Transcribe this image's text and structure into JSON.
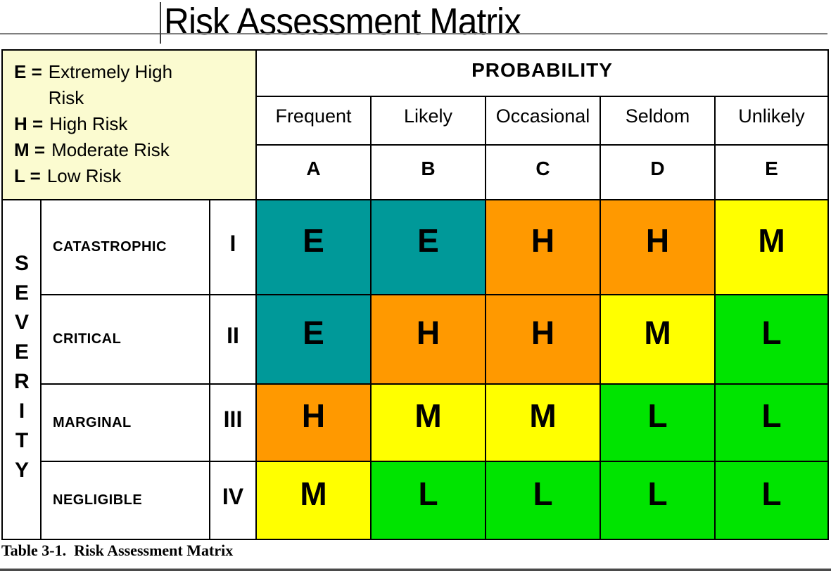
{
  "title": "Risk Assessment Matrix",
  "caption": "Table 3-1.  Risk Assessment Matrix",
  "legend": {
    "background": "#FBFBD0",
    "items": [
      {
        "key": "E =",
        "label": "Extremely High Risk"
      },
      {
        "key": "H =",
        "label": "High Risk"
      },
      {
        "key": "M =",
        "label": "Moderate Risk"
      },
      {
        "key": "L =",
        "label": "Low Risk"
      }
    ]
  },
  "probability": {
    "title": "PROBABILITY",
    "columns": [
      {
        "name": "Frequent",
        "letter": "A"
      },
      {
        "name": "Likely",
        "letter": "B"
      },
      {
        "name": "Occasional",
        "letter": "C"
      },
      {
        "name": "Seldom",
        "letter": "D"
      },
      {
        "name": "Unlikely",
        "letter": "E"
      }
    ]
  },
  "severity": {
    "label": "SEVERITY"
  },
  "risk_colors": {
    "E": "#009999",
    "H": "#FF9900",
    "M": "#FFFF00",
    "L": "#00E400"
  },
  "matrix": {
    "rows": [
      {
        "severity": "CATASTROPHIC",
        "numeral": "I",
        "cells": [
          {
            "label": "E",
            "color": "#009999"
          },
          {
            "label": "E",
            "color": "#009999"
          },
          {
            "label": "H",
            "color": "#FF9900"
          },
          {
            "label": "H",
            "color": "#FF9900"
          },
          {
            "label": "M",
            "color": "#FFFF00"
          }
        ]
      },
      {
        "severity": "CRITICAL",
        "numeral": "II",
        "cells": [
          {
            "label": "E",
            "color": "#009999"
          },
          {
            "label": "H",
            "color": "#FF9900"
          },
          {
            "label": "H",
            "color": "#FF9900"
          },
          {
            "label": "M",
            "color": "#FFFF00"
          },
          {
            "label": "L",
            "color": "#00E400"
          }
        ]
      },
      {
        "severity": "MARGINAL",
        "numeral": "III",
        "cells": [
          {
            "label": "H",
            "color": "#FF9900"
          },
          {
            "label": "M",
            "color": "#FFFF00"
          },
          {
            "label": "M",
            "color": "#FFFF00"
          },
          {
            "label": "L",
            "color": "#00E400"
          },
          {
            "label": "L",
            "color": "#00E400"
          }
        ]
      },
      {
        "severity": "NEGLIGIBLE",
        "numeral": "IV",
        "cells": [
          {
            "label": "M",
            "color": "#FFFF00"
          },
          {
            "label": "L",
            "color": "#00E400"
          },
          {
            "label": "L",
            "color": "#00E400"
          },
          {
            "label": "L",
            "color": "#00E400"
          },
          {
            "label": "L",
            "color": "#00E400"
          }
        ]
      }
    ]
  }
}
